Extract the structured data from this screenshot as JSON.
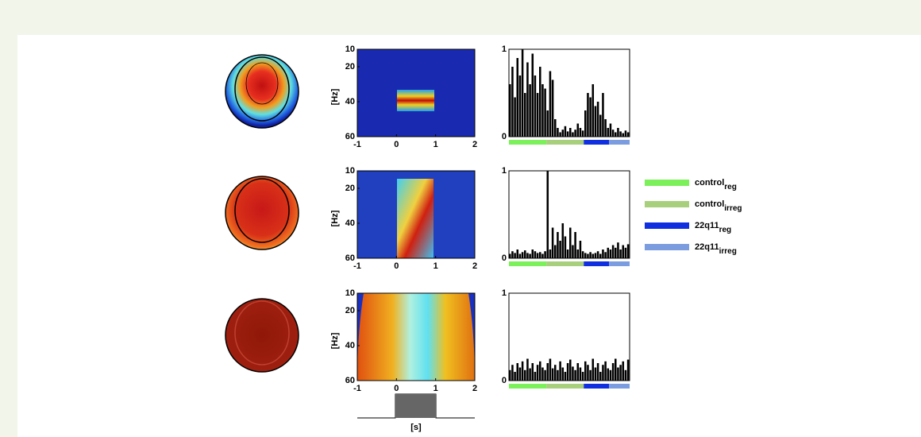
{
  "figure": {
    "spectrogram": {
      "ylabel": "[Hz]",
      "xlabel": "[s]",
      "ylim": [
        10,
        60
      ],
      "yticks": [
        10,
        20,
        40,
        60
      ],
      "xlim": [
        -1,
        2
      ],
      "xticks": [
        -1,
        0,
        1,
        2
      ]
    },
    "histogram": {
      "ylim": [
        0,
        1
      ],
      "yticks": [
        0,
        1
      ],
      "color": "#000000"
    },
    "groups": [
      {
        "name": "control",
        "sub": "reg",
        "color": "#7cf05a"
      },
      {
        "name": "control",
        "sub": "irreg",
        "color": "#a8d07c"
      },
      {
        "name": "22q11",
        "sub": "reg",
        "color": "#1030e0"
      },
      {
        "name": "22q11",
        "sub": "irreg",
        "color": "#7c9ce0"
      }
    ],
    "rows": [
      {
        "values": [
          0.6,
          0.8,
          0.45,
          0.9,
          0.7,
          1.0,
          0.5,
          0.85,
          0.6,
          0.95,
          0.7,
          0.5,
          0.8,
          0.6,
          0.55,
          0.3,
          0.75,
          0.65,
          0.2,
          0.1,
          0.05,
          0.08,
          0.12,
          0.06,
          0.1,
          0.05,
          0.08,
          0.15,
          0.1,
          0.07,
          0.3,
          0.5,
          0.45,
          0.6,
          0.35,
          0.4,
          0.25,
          0.5,
          0.2,
          0.1,
          0.15,
          0.08,
          0.05,
          0.1,
          0.06,
          0.04,
          0.07,
          0.05
        ]
      },
      {
        "values": [
          0.05,
          0.08,
          0.06,
          0.1,
          0.05,
          0.07,
          0.09,
          0.06,
          0.05,
          0.1,
          0.08,
          0.06,
          0.07,
          0.05,
          0.08,
          1.0,
          0.1,
          0.35,
          0.15,
          0.3,
          0.2,
          0.4,
          0.25,
          0.1,
          0.35,
          0.15,
          0.3,
          0.1,
          0.2,
          0.08,
          0.06,
          0.05,
          0.07,
          0.05,
          0.06,
          0.08,
          0.05,
          0.1,
          0.07,
          0.12,
          0.1,
          0.15,
          0.12,
          0.18,
          0.1,
          0.15,
          0.12,
          0.16
        ]
      },
      {
        "values": [
          0.12,
          0.18,
          0.1,
          0.2,
          0.15,
          0.22,
          0.12,
          0.25,
          0.14,
          0.2,
          0.1,
          0.18,
          0.22,
          0.15,
          0.12,
          0.2,
          0.25,
          0.14,
          0.18,
          0.12,
          0.22,
          0.15,
          0.1,
          0.2,
          0.24,
          0.16,
          0.12,
          0.2,
          0.15,
          0.1,
          0.22,
          0.18,
          0.12,
          0.25,
          0.15,
          0.2,
          0.1,
          0.18,
          0.22,
          0.14,
          0.12,
          0.2,
          0.25,
          0.15,
          0.18,
          0.22,
          0.12,
          0.24
        ]
      }
    ]
  }
}
